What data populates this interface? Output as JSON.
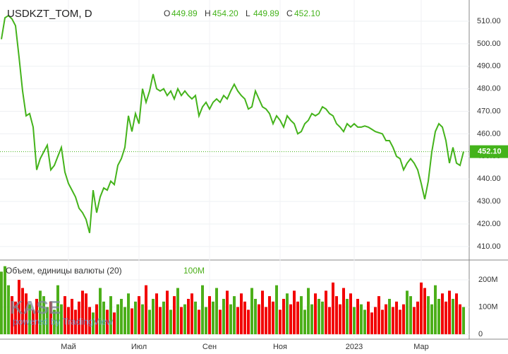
{
  "chart_data": {
    "type": "line",
    "title": "USDKZT_TOM, D",
    "ohlc": [
      [
        "O",
        "449.89"
      ],
      [
        "H",
        "454.20"
      ],
      [
        "L",
        "449.89"
      ],
      [
        "C",
        "452.10"
      ]
    ],
    "color": "#44b31b",
    "last_label": "452.10",
    "grid": true,
    "categories": [
      null,
      null,
      null,
      null,
      null,
      null,
      null,
      null,
      null,
      null,
      null,
      null,
      null,
      null,
      null,
      null,
      null,
      null,
      null,
      "Май",
      null,
      null,
      null,
      null,
      null,
      null,
      null,
      null,
      null,
      null,
      null,
      null,
      null,
      null,
      null,
      null,
      null,
      null,
      null,
      "Июл",
      null,
      null,
      null,
      null,
      null,
      null,
      null,
      null,
      null,
      null,
      null,
      null,
      null,
      null,
      null,
      null,
      null,
      null,
      null,
      "Сен",
      null,
      null,
      null,
      null,
      null,
      null,
      null,
      null,
      null,
      null,
      null,
      null,
      null,
      null,
      null,
      null,
      null,
      null,
      null,
      "Ноя",
      null,
      null,
      null,
      null,
      null,
      null,
      null,
      null,
      null,
      null,
      null,
      null,
      null,
      null,
      null,
      null,
      null,
      null,
      null,
      null,
      "2023",
      null,
      null,
      null,
      null,
      null,
      null,
      null,
      null,
      null,
      null,
      null,
      null,
      null,
      null,
      null,
      null,
      null,
      null,
      "Мар",
      null,
      null,
      null,
      null,
      null,
      null,
      null,
      null,
      null,
      null,
      null,
      null
    ],
    "values": [
      502,
      511.5,
      512.5,
      511,
      508,
      494,
      479,
      468,
      469,
      463,
      444,
      449,
      452,
      455,
      444,
      446,
      450,
      454,
      443,
      438,
      435,
      432,
      427,
      425,
      422,
      416,
      435,
      425,
      432,
      436,
      435,
      439,
      437.5,
      446,
      449,
      454,
      468,
      461,
      469,
      464.5,
      480,
      474,
      479,
      486.5,
      480,
      479,
      480,
      477,
      479,
      475.5,
      480,
      477,
      479,
      477,
      475.5,
      477,
      468,
      472,
      474,
      471,
      474,
      475.5,
      474,
      477,
      475.5,
      479,
      482,
      479,
      477,
      475.5,
      471,
      472,
      479,
      475.5,
      472,
      471,
      469,
      464.5,
      468,
      466,
      463,
      468,
      466,
      464.5,
      460,
      461,
      464.5,
      466,
      469,
      468,
      469,
      472,
      471,
      469,
      468,
      464.5,
      463,
      461,
      464.5,
      463,
      464.5,
      463,
      463,
      463.5,
      463,
      462,
      461,
      460.5,
      460,
      457,
      457,
      454,
      450,
      449,
      444,
      447,
      449,
      447,
      444,
      438,
      431,
      439,
      452,
      461,
      464.5,
      463,
      457,
      447,
      454,
      447,
      446,
      452.1
    ],
    "ylim": [
      404,
      519.4
    ],
    "yticks": [
      {
        "value": 410,
        "label": "410.00"
      },
      {
        "value": 420,
        "label": "420.00"
      },
      {
        "value": 430,
        "label": "430.00"
      },
      {
        "value": 440,
        "label": "440.00"
      },
      {
        "value": 450,
        "label": "450.00"
      },
      {
        "value": 460,
        "label": "460.00"
      },
      {
        "value": 470,
        "label": "470.00"
      },
      {
        "value": 480,
        "label": "480.00"
      },
      {
        "value": 490,
        "label": "490.00"
      },
      {
        "value": 500,
        "label": "500.00"
      },
      {
        "value": 510,
        "label": "510.00"
      }
    ],
    "volume": {
      "name": "Объем, единицы валюты (20)",
      "value_label": "100M",
      "up_color": "#4caf1a",
      "down_color": "#f20000",
      "values": [
        230,
        250,
        180,
        140,
        120,
        200,
        170,
        150,
        110,
        90,
        130,
        160,
        140,
        100,
        120,
        90,
        180,
        110,
        140,
        100,
        130,
        90,
        120,
        160,
        150,
        100,
        80,
        110,
        170,
        120,
        90,
        140,
        80,
        110,
        130,
        100,
        150,
        95,
        120,
        140,
        110,
        180,
        90,
        130,
        150,
        100,
        120,
        160,
        90,
        140,
        170,
        100,
        110,
        130,
        150,
        120,
        90,
        180,
        100,
        140,
        120,
        170,
        90,
        130,
        160,
        110,
        140,
        100,
        150,
        120,
        90,
        170,
        130,
        110,
        160,
        100,
        140,
        120,
        180,
        90,
        130,
        150,
        110,
        160,
        120,
        140,
        90,
        170,
        110,
        150,
        130,
        120,
        160,
        100,
        190,
        140,
        110,
        170,
        130,
        150,
        100,
        130,
        110,
        90,
        120,
        80,
        100,
        140,
        90,
        110,
        130,
        100,
        120,
        90,
        110,
        160,
        140,
        100,
        120,
        190,
        170,
        140,
        110,
        180,
        130,
        150,
        120,
        160,
        130,
        150,
        110,
        100
      ],
      "ylim": [
        -18,
        267.5
      ],
      "yticks": [
        {
          "value": 200,
          "label": "200M"
        },
        {
          "value": 100,
          "label": "100M"
        },
        0
      ]
    },
    "watermark": [
      "KASE",
      "powered by TradingView"
    ]
  }
}
